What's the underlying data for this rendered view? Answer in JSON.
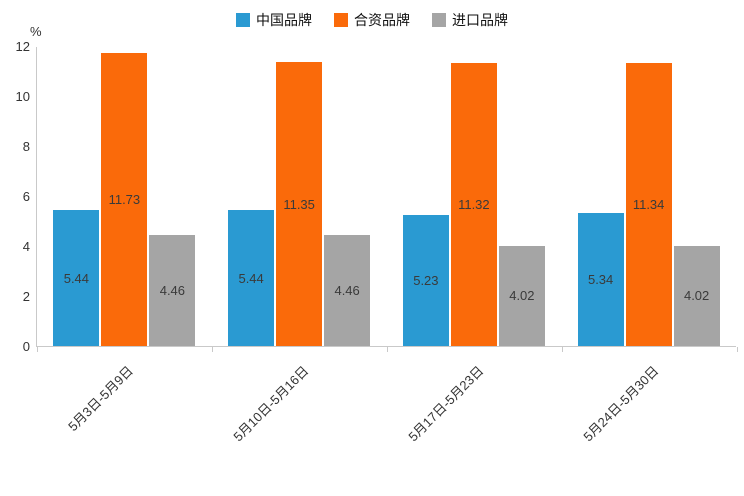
{
  "chart_data": {
    "type": "bar",
    "title": "",
    "categories": [
      "5月3日-5月9日",
      "5月10日-5月16日",
      "5月17日-5月23日",
      "5月24日-5月30日"
    ],
    "series": [
      {
        "name": "中国品牌",
        "color": "#2A9AD2",
        "values": [
          5.44,
          5.44,
          5.23,
          5.34
        ]
      },
      {
        "name": "合资品牌",
        "color": "#FA6A0A",
        "values": [
          11.73,
          11.35,
          11.32,
          11.34
        ]
      },
      {
        "name": "进口品牌",
        "color": "#A5A5A5",
        "values": [
          4.46,
          4.46,
          4.02,
          4.02
        ]
      }
    ],
    "xlabel": "",
    "ylabel": "%",
    "ylim": [
      0,
      12
    ],
    "yticks": [
      0,
      2,
      4,
      6,
      8,
      10,
      12
    ],
    "grid": false,
    "legend_position": "top",
    "bar_value_labels": "centered-inside"
  }
}
